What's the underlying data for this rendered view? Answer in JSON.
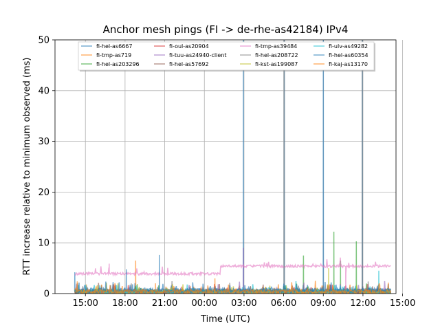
{
  "chart_data": {
    "type": "line",
    "title": "Anchor mesh pings (FI -> de-rhe-as42184) IPv4",
    "xlabel": "Time (UTC)",
    "ylabel": "RTT increase relative to minimum observed (ms)",
    "ylim": [
      0,
      50
    ],
    "xlim_hours": [
      12.7,
      38.5
    ],
    "grid": true,
    "legend_position": "top",
    "x_ticks": [
      {
        "label": "15:00",
        "hour": 15
      },
      {
        "label": "18:00",
        "hour": 18
      },
      {
        "label": "21:00",
        "hour": 21
      },
      {
        "label": "00:00",
        "hour": 24
      },
      {
        "label": "03:00",
        "hour": 27
      },
      {
        "label": "06:00",
        "hour": 30
      },
      {
        "label": "09:00",
        "hour": 33
      },
      {
        "label": "12:00",
        "hour": 36
      },
      {
        "label": "15:00",
        "hour": 39
      }
    ],
    "y_ticks": [
      0,
      10,
      20,
      30,
      40,
      50
    ],
    "time_range_hours": [
      14.2,
      38.1
    ],
    "series": [
      {
        "name": "fi-hel-as6667",
        "color": "#1f77b4",
        "base": 0.5,
        "noise": 0.5,
        "spikes": [
          [
            14.2,
            4.2
          ],
          [
            26.95,
            50
          ],
          [
            30.05,
            50
          ],
          [
            33.0,
            50
          ],
          [
            35.95,
            50
          ]
        ]
      },
      {
        "name": "fi-tmp-as719",
        "color": "#ff7f0e",
        "base": 0.4,
        "noise": 0.4,
        "spikes": [
          [
            18.8,
            6.5
          ],
          [
            20.3,
            2.0
          ]
        ]
      },
      {
        "name": "fi-hel-as203296",
        "color": "#2ca02c",
        "base": 0.3,
        "noise": 0.5,
        "spikes": [
          [
            33.8,
            12.2
          ],
          [
            35.5,
            10.3
          ],
          [
            34.3,
            6.5
          ],
          [
            31.5,
            7.5
          ]
        ]
      },
      {
        "name": "fi-oul-as20904",
        "color": "#d62728",
        "base": 0.3,
        "noise": 0.3,
        "spikes": []
      },
      {
        "name": "fi-tuu-as24940-client",
        "color": "#9467bd",
        "base": 0.4,
        "noise": 0.4,
        "spikes": [
          [
            26.95,
            9.0
          ]
        ]
      },
      {
        "name": "fi-hel-as57692",
        "color": "#8c564b",
        "base": 0.3,
        "noise": 0.3,
        "spikes": []
      },
      {
        "name": "fi-tmp-as39484",
        "color": "#e377c2",
        "base": 3.9,
        "base2": 5.4,
        "step_at": 25.2,
        "noise": 0.25,
        "spikes": [
          [
            16.8,
            5.9
          ],
          [
            34.7,
            0.3
          ]
        ]
      },
      {
        "name": "fi-hel-as208722",
        "color": "#7f7f7f",
        "base": 0.5,
        "noise": 0.3,
        "spikes": [
          [
            30.05,
            50
          ],
          [
            35.95,
            50
          ]
        ]
      },
      {
        "name": "fi-kst-as199087",
        "color": "#bcbd22",
        "base": 0.3,
        "noise": 0.4,
        "spikes": [
          [
            33.4,
            5.0
          ]
        ]
      },
      {
        "name": "fi-ulv-as49282",
        "color": "#17becf",
        "base": 0.4,
        "noise": 0.4,
        "spikes": [
          [
            37.2,
            4.5
          ]
        ]
      },
      {
        "name": "fi-hel-as60354",
        "color": "#1f77b4",
        "base": 0.6,
        "noise": 0.5,
        "spikes": [
          [
            20.6,
            7.6
          ],
          [
            18.1,
            4.8
          ]
        ]
      },
      {
        "name": "fi-kaj-as13170",
        "color": "#ff7f0e",
        "base": 0.4,
        "noise": 0.4,
        "spikes": [
          [
            24.8,
            3.0
          ]
        ]
      }
    ]
  }
}
